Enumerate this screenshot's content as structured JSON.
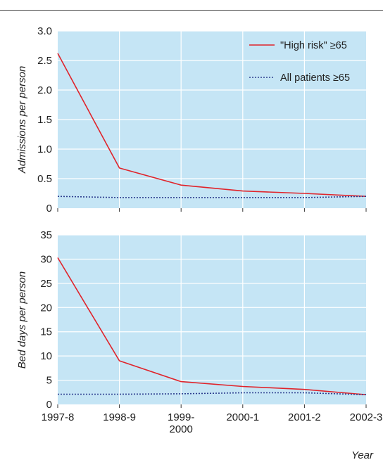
{
  "figure": {
    "xlabel": "Year"
  },
  "colors": {
    "panel_bg": "#c5e5f5",
    "grid": "#ffffff",
    "high_risk": "#e0242b",
    "all_patients": "#2e3f8f"
  },
  "chart_data": [
    {
      "type": "line",
      "ylabel": "Admissions per person",
      "ylim": [
        0,
        3.0
      ],
      "yticks": [
        "0",
        "0.5",
        "1.0",
        "1.5",
        "2.0",
        "2.5",
        "3.0"
      ],
      "ytick_values": [
        0,
        0.5,
        1.0,
        1.5,
        2.0,
        2.5,
        3.0
      ],
      "categories": [
        "1997-8",
        "1998-9",
        "1999-\n2000",
        "2000-1",
        "2001-2",
        "2002-3"
      ],
      "grid": true,
      "legend_position": "top-right",
      "series": [
        {
          "name": "\"High risk\" ≥65",
          "style": "solid",
          "values": [
            2.62,
            0.68,
            0.39,
            0.29,
            0.25,
            0.2
          ]
        },
        {
          "name": "All patients ≥65",
          "style": "dotted",
          "values": [
            0.2,
            0.18,
            0.18,
            0.18,
            0.18,
            0.2
          ]
        }
      ]
    },
    {
      "type": "line",
      "ylabel": "Bed days per person",
      "ylim": [
        0,
        35
      ],
      "yticks": [
        "0",
        "5",
        "10",
        "15",
        "20",
        "25",
        "30",
        "35"
      ],
      "ytick_values": [
        0,
        5,
        10,
        15,
        20,
        25,
        30,
        35
      ],
      "categories": [
        "1997-8",
        "1998-9",
        "1999-\n2000",
        "2000-1",
        "2001-2",
        "2002-3"
      ],
      "grid": true,
      "series": [
        {
          "name": "\"High risk\" ≥65",
          "style": "solid",
          "values": [
            30.3,
            9.0,
            4.7,
            3.7,
            3.1,
            2.0
          ]
        },
        {
          "name": "All patients ≥65",
          "style": "dotted",
          "values": [
            2.1,
            2.1,
            2.2,
            2.4,
            2.4,
            2.0
          ]
        }
      ]
    }
  ]
}
